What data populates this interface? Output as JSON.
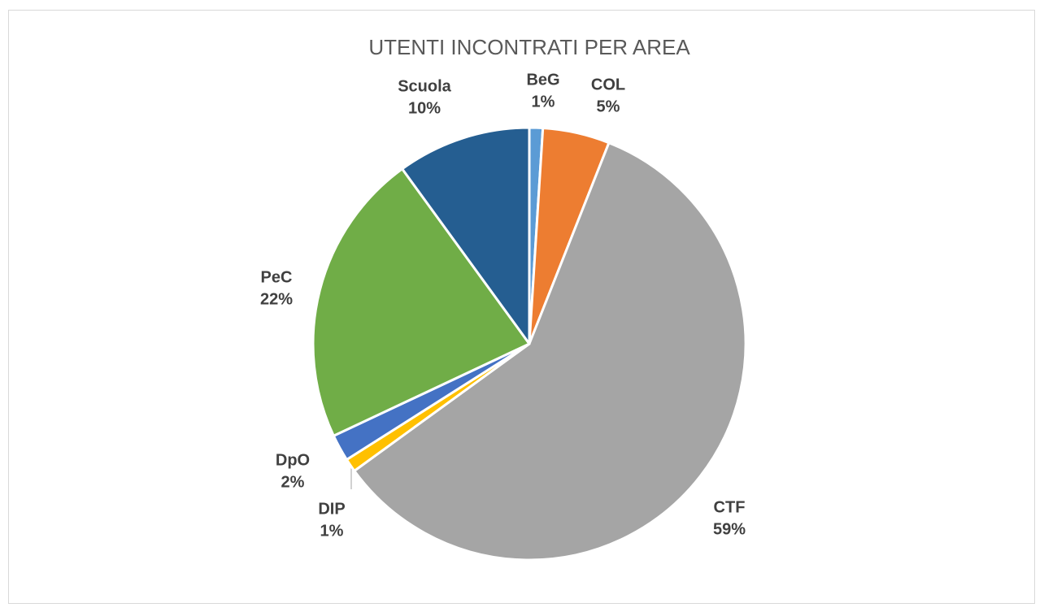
{
  "chart_data": {
    "type": "pie",
    "title": "UTENTI INCONTRATI PER AREA",
    "categories": [
      "BeG",
      "COL",
      "CTF",
      "DIP",
      "DpO",
      "PeC",
      "Scuola"
    ],
    "values": [
      1,
      5,
      59,
      1,
      2,
      22,
      10
    ],
    "value_labels": [
      "1%",
      "5%",
      "59%",
      "1%",
      "2%",
      "22%",
      "10%"
    ],
    "colors": [
      "#5b9bd5",
      "#ed7d31",
      "#a5a5a5",
      "#ffc000",
      "#4472c4",
      "#70ad47",
      "#255e91"
    ]
  }
}
